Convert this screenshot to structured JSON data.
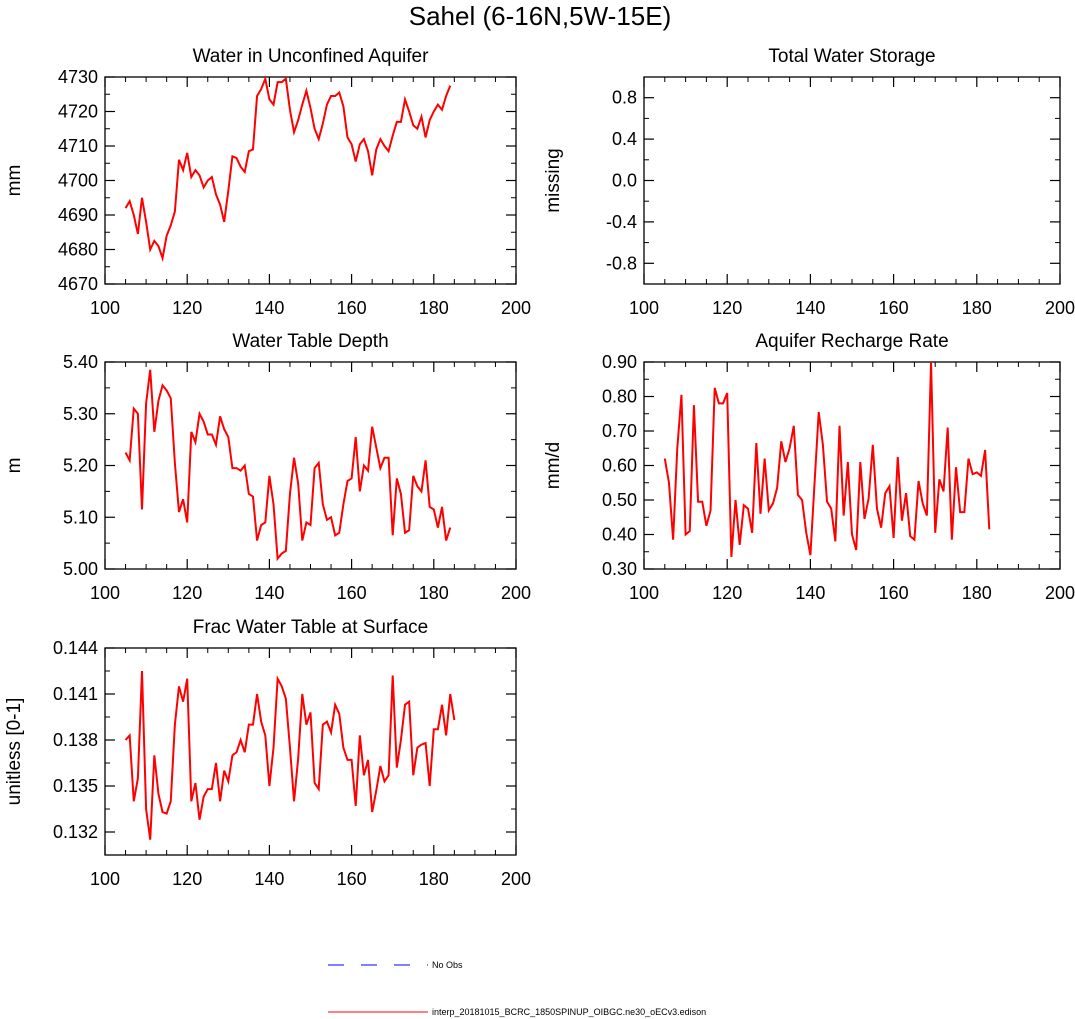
{
  "figure": {
    "title": "Sahel (6-16N,5W-15E)"
  },
  "legend": {
    "placement": "bottom-center",
    "entries": [
      {
        "label": "No Obs",
        "color": "#0000ff",
        "style": "dashed"
      },
      {
        "label": "interp_20181015_BCRC_1850SPINUP_OIBGC.ne30_oECv3.edison",
        "color": "#ff0000",
        "style": "solid"
      }
    ]
  },
  "chart_data": [
    {
      "id": "unconfined",
      "type": "line",
      "title": "Water in Unconfined Aquifer",
      "ylabel": "mm",
      "xlim": [
        100,
        200
      ],
      "ylim": [
        4670,
        4730
      ],
      "xticks": [
        100,
        120,
        140,
        160,
        180,
        200
      ],
      "xtick_labels": [
        "100",
        "120",
        "140",
        "160",
        "180",
        "200"
      ],
      "yticks": [
        4670,
        4680,
        4690,
        4700,
        4710,
        4720,
        4730
      ],
      "ytick_labels": [
        "4670",
        "4680",
        "4690",
        "4700",
        "4710",
        "4720",
        "4730"
      ],
      "color": "#ff0000",
      "x_start": 105,
      "values": [
        4692,
        4694,
        4690,
        4684.5,
        4695,
        4688,
        4680,
        4682.5,
        4681,
        4677.5,
        4684,
        4687,
        4691,
        4706,
        4703,
        4708,
        4701,
        4703,
        4701.5,
        4698,
        4700,
        4701,
        4696,
        4693,
        4688,
        4697,
        4707,
        4706.5,
        4704,
        4702.5,
        4708.5,
        4709,
        4724.5,
        4726.5,
        4729.5,
        4723.5,
        4722,
        4728.5,
        4728.5,
        4729.5,
        4720.5,
        4714,
        4717.5,
        4722,
        4726,
        4721,
        4715,
        4712,
        4716.5,
        4722,
        4724.5,
        4724.5,
        4725.5,
        4721.5,
        4712.5,
        4710.5,
        4705.5,
        4710.5,
        4712,
        4708.5,
        4701.5,
        4709,
        4712,
        4710,
        4708.5,
        4713,
        4717,
        4717,
        4723.5,
        4720,
        4716,
        4715,
        4718.5,
        4712.5,
        4717.5,
        4720,
        4722,
        4720.5,
        4724.5,
        4727.5
      ]
    },
    {
      "id": "tws",
      "type": "line",
      "title": "Total Water Storage",
      "ylabel": "missing",
      "xlim": [
        100,
        200
      ],
      "ylim": [
        -1.0,
        1.0
      ],
      "xticks": [
        100,
        120,
        140,
        160,
        180,
        200
      ],
      "xtick_labels": [
        "100",
        "120",
        "140",
        "160",
        "180",
        "200"
      ],
      "yticks": [
        -0.8,
        -0.4,
        0.0,
        0.4,
        0.8
      ],
      "ytick_labels": [
        "-0.8",
        "-0.4",
        "0.0",
        "0.4",
        "0.8"
      ],
      "color": "#ff0000",
      "x_start": 105,
      "values": []
    },
    {
      "id": "wtd",
      "type": "line",
      "title": "Water Table Depth",
      "ylabel": "m",
      "xlim": [
        100,
        200
      ],
      "ylim": [
        5.0,
        5.4
      ],
      "xticks": [
        100,
        120,
        140,
        160,
        180,
        200
      ],
      "xtick_labels": [
        "100",
        "120",
        "140",
        "160",
        "180",
        "200"
      ],
      "yticks": [
        5.0,
        5.1,
        5.2,
        5.3,
        5.4
      ],
      "ytick_labels": [
        "5.00",
        "5.10",
        "5.20",
        "5.30",
        "5.40"
      ],
      "color": "#ff0000",
      "x_start": 105,
      "values": [
        5.225,
        5.21,
        5.31,
        5.3,
        5.115,
        5.32,
        5.385,
        5.265,
        5.325,
        5.355,
        5.345,
        5.33,
        5.205,
        5.11,
        5.135,
        5.09,
        5.265,
        5.245,
        5.3,
        5.285,
        5.26,
        5.26,
        5.24,
        5.295,
        5.27,
        5.255,
        5.195,
        5.195,
        5.19,
        5.2,
        5.145,
        5.14,
        5.055,
        5.085,
        5.09,
        5.18,
        5.125,
        5.02,
        5.03,
        5.035,
        5.145,
        5.215,
        5.165,
        5.055,
        5.09,
        5.085,
        5.195,
        5.205,
        5.125,
        5.095,
        5.1,
        5.065,
        5.07,
        5.125,
        5.17,
        5.175,
        5.255,
        5.15,
        5.2,
        5.19,
        5.275,
        5.235,
        5.195,
        5.215,
        5.215,
        5.065,
        5.175,
        5.145,
        5.07,
        5.075,
        5.18,
        5.16,
        5.15,
        5.21,
        5.12,
        5.115,
        5.08,
        5.12,
        5.055,
        5.08
      ]
    },
    {
      "id": "recharge",
      "type": "line",
      "title": "Aquifer Recharge Rate",
      "ylabel": "mm/d",
      "xlim": [
        100,
        200
      ],
      "ylim": [
        0.3,
        0.9
      ],
      "xticks": [
        100,
        120,
        140,
        160,
        180,
        200
      ],
      "xtick_labels": [
        "100",
        "120",
        "140",
        "160",
        "180",
        "200"
      ],
      "yticks": [
        0.3,
        0.4,
        0.5,
        0.6,
        0.7,
        0.8,
        0.9
      ],
      "ytick_labels": [
        "0.30",
        "0.40",
        "0.50",
        "0.60",
        "0.70",
        "0.80",
        "0.90"
      ],
      "color": "#ff0000",
      "x_start": 105,
      "values": [
        0.62,
        0.55,
        0.385,
        0.65,
        0.805,
        0.4,
        0.41,
        0.775,
        0.495,
        0.495,
        0.425,
        0.47,
        0.825,
        0.78,
        0.78,
        0.81,
        0.335,
        0.5,
        0.37,
        0.485,
        0.475,
        0.405,
        0.665,
        0.46,
        0.62,
        0.47,
        0.49,
        0.535,
        0.67,
        0.61,
        0.65,
        0.715,
        0.515,
        0.5,
        0.405,
        0.34,
        0.55,
        0.755,
        0.66,
        0.495,
        0.475,
        0.38,
        0.715,
        0.455,
        0.61,
        0.4,
        0.355,
        0.61,
        0.445,
        0.505,
        0.66,
        0.475,
        0.42,
        0.52,
        0.54,
        0.39,
        0.625,
        0.44,
        0.52,
        0.395,
        0.385,
        0.555,
        0.49,
        0.455,
        0.9,
        0.405,
        0.56,
        0.525,
        0.71,
        0.385,
        0.595,
        0.465,
        0.465,
        0.62,
        0.575,
        0.58,
        0.57,
        0.645,
        0.415
      ]
    },
    {
      "id": "frac",
      "type": "line",
      "title": "Frac Water Table at Surface",
      "ylabel": "unitless [0-1]",
      "xlim": [
        100,
        200
      ],
      "ylim": [
        0.1305,
        0.144
      ],
      "xticks": [
        100,
        120,
        140,
        160,
        180,
        200
      ],
      "xtick_labels": [
        "100",
        "120",
        "140",
        "160",
        "180",
        "200"
      ],
      "yticks": [
        0.132,
        0.135,
        0.138,
        0.141,
        0.144
      ],
      "ytick_labels": [
        "0.132",
        "0.135",
        "0.138",
        "0.141",
        "0.144"
      ],
      "color": "#ff0000",
      "x_start": 105,
      "values": [
        0.138,
        0.1383,
        0.134,
        0.1355,
        0.1425,
        0.1335,
        0.1315,
        0.137,
        0.1345,
        0.1333,
        0.1332,
        0.134,
        0.139,
        0.1415,
        0.1405,
        0.142,
        0.134,
        0.1352,
        0.1328,
        0.1343,
        0.1348,
        0.1348,
        0.1365,
        0.134,
        0.136,
        0.1353,
        0.137,
        0.1372,
        0.138,
        0.1372,
        0.139,
        0.139,
        0.141,
        0.1392,
        0.1383,
        0.135,
        0.1375,
        0.142,
        0.1415,
        0.1407,
        0.1375,
        0.134,
        0.1368,
        0.141,
        0.139,
        0.1398,
        0.1352,
        0.1348,
        0.139,
        0.1392,
        0.1385,
        0.1403,
        0.1397,
        0.1375,
        0.1367,
        0.1367,
        0.1337,
        0.1383,
        0.1357,
        0.1367,
        0.1333,
        0.1347,
        0.1363,
        0.1353,
        0.1357,
        0.1422,
        0.1362,
        0.138,
        0.1403,
        0.1405,
        0.1357,
        0.1375,
        0.1377,
        0.1378,
        0.135,
        0.1387,
        0.1387,
        0.1403,
        0.1383,
        0.141,
        0.1393
      ]
    }
  ]
}
